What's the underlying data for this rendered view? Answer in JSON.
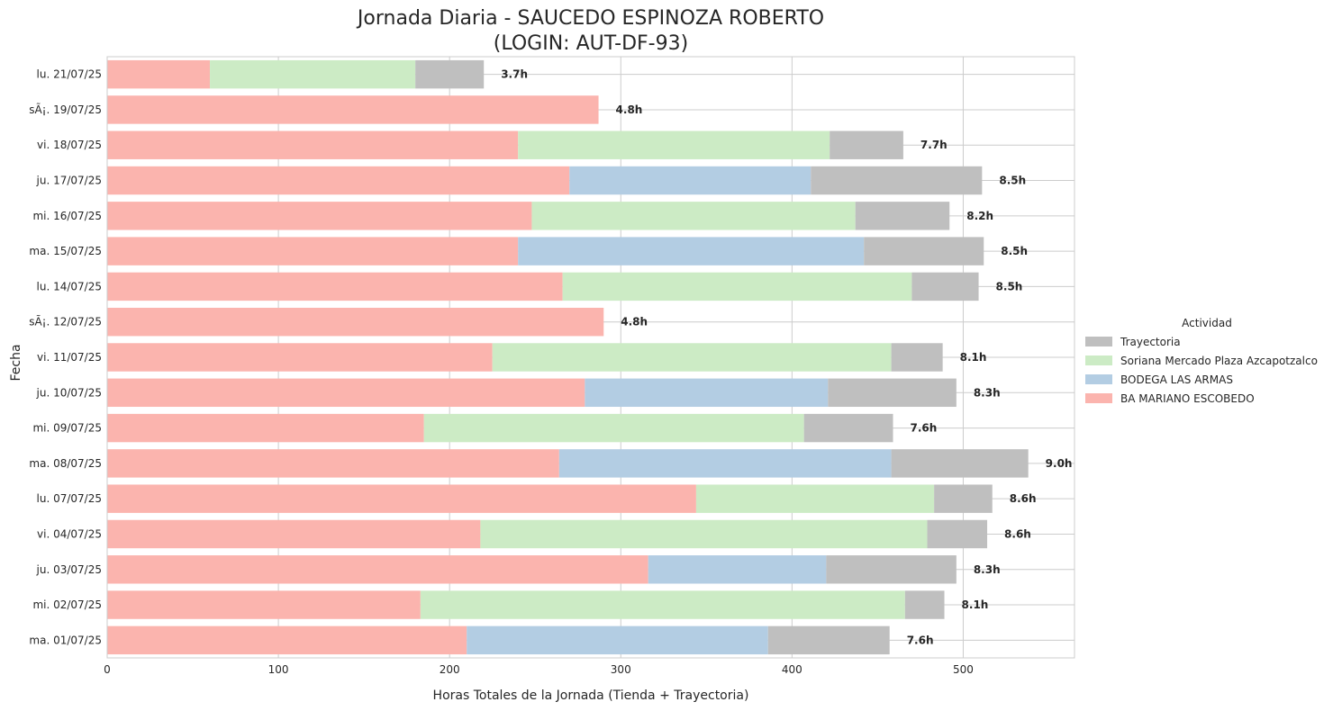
{
  "chart_data": {
    "type": "bar",
    "orientation": "horizontal",
    "stacked": true,
    "title_line1": "Jornada Diaria - SAUCEDO ESPINOZA ROBERTO",
    "title_line2": "(LOGIN: AUT-DF-93)",
    "xlabel": "Horas Totales de la Jornada (Tienda + Trayectoria)",
    "ylabel": "Fecha",
    "xlim": [
      0,
      565
    ],
    "xticks": [
      0,
      100,
      200,
      300,
      400,
      500
    ],
    "grid": true,
    "legend_title": "Actividad",
    "legend_placement": "center-right",
    "legend": [
      {
        "name": "Trayectoria",
        "color": "#bfbfbf"
      },
      {
        "name": "Soriana Mercado Plaza Azcapotzalco",
        "color": "#ccebc5"
      },
      {
        "name": "BODEGA LAS ARMAS",
        "color": "#b3cde3"
      },
      {
        "name": "BA MARIANO ESCOBEDO",
        "color": "#fbb4ae"
      }
    ],
    "categories": [
      "lu. 21/07/25",
      "sÃ¡. 19/07/25",
      "vi. 18/07/25",
      "ju. 17/07/25",
      "mi. 16/07/25",
      "ma. 15/07/25",
      "lu. 14/07/25",
      "sÃ¡. 12/07/25",
      "vi. 11/07/25",
      "ju. 10/07/25",
      "mi. 09/07/25",
      "ma. 08/07/25",
      "lu. 07/07/25",
      "vi. 04/07/25",
      "ju. 03/07/25",
      "mi. 02/07/25",
      "ma. 01/07/25"
    ],
    "series": [
      {
        "name": "BA MARIANO ESCOBEDO",
        "color": "#fbb4ae",
        "values": [
          60,
          287,
          240,
          270,
          248,
          240,
          266,
          290,
          225,
          279,
          185,
          264,
          344,
          218,
          316,
          183,
          210
        ]
      },
      {
        "name": "Soriana Mercado Plaza Azcapotzalco",
        "color": "#ccebc5",
        "values": [
          120,
          0,
          182,
          0,
          189,
          0,
          204,
          0,
          233,
          0,
          222,
          0,
          139,
          261,
          0,
          283,
          0
        ]
      },
      {
        "name": "BODEGA LAS ARMAS",
        "color": "#b3cde3",
        "values": [
          0,
          0,
          0,
          141,
          0,
          202,
          0,
          0,
          0,
          142,
          0,
          194,
          0,
          0,
          104,
          0,
          176
        ]
      },
      {
        "name": "Trayectoria",
        "color": "#bfbfbf",
        "values": [
          40,
          0,
          43,
          100,
          55,
          70,
          39,
          0,
          30,
          75,
          52,
          80,
          34,
          35,
          76,
          23,
          71
        ]
      }
    ],
    "bar_labels": [
      "3.7h",
      "4.8h",
      "7.7h",
      "8.5h",
      "8.2h",
      "8.5h",
      "8.5h",
      "4.8h",
      "8.1h",
      "8.3h",
      "7.6h",
      "9.0h",
      "8.6h",
      "8.6h",
      "8.3h",
      "8.1h",
      "7.6h"
    ]
  }
}
